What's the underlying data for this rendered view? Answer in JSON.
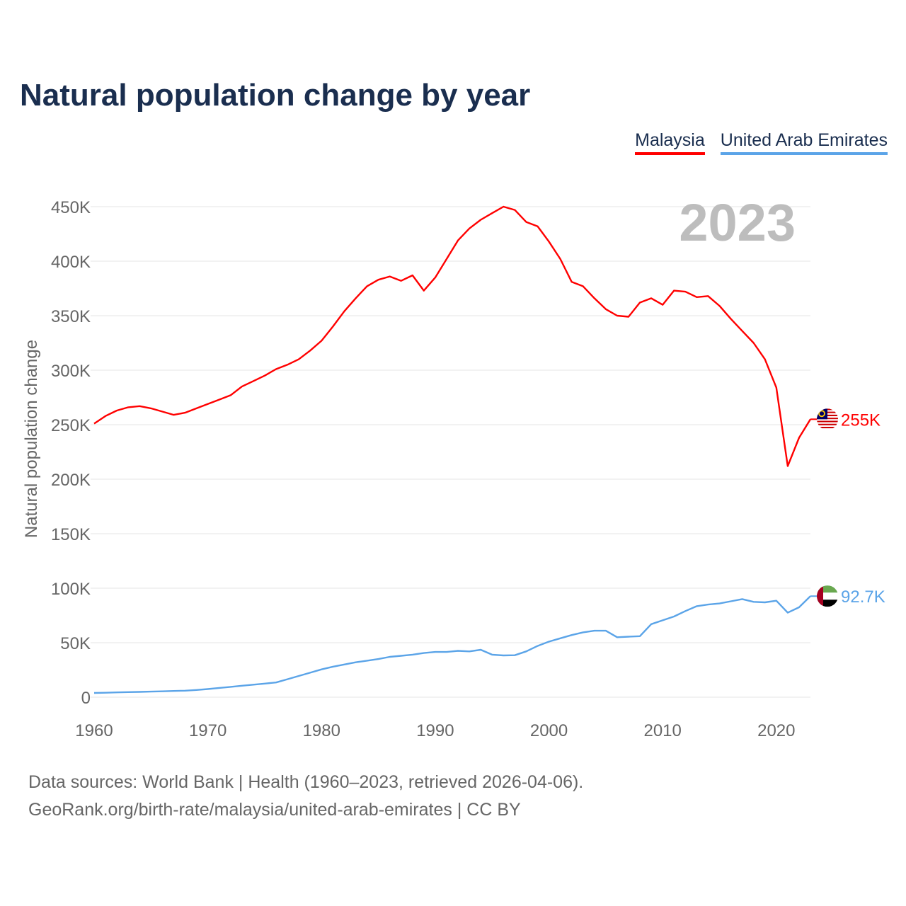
{
  "chart_data": {
    "type": "line",
    "title": "Natural population change by year",
    "ylabel": "Natural population change",
    "xlabel": "",
    "year_label": "2023",
    "xlim": [
      1960,
      2023
    ],
    "ylim": [
      0,
      450000
    ],
    "x_ticks": [
      1960,
      1970,
      1980,
      1990,
      2000,
      2010,
      2020
    ],
    "y_ticks": [
      0,
      50000,
      100000,
      150000,
      200000,
      250000,
      300000,
      350000,
      400000,
      450000
    ],
    "y_tick_labels": [
      "0",
      "50K",
      "100K",
      "150K",
      "200K",
      "250K",
      "300K",
      "350K",
      "400K",
      "450K"
    ],
    "grid": true,
    "legend_placement": "top-right",
    "x": [
      1960,
      1961,
      1962,
      1963,
      1964,
      1965,
      1966,
      1967,
      1968,
      1969,
      1970,
      1971,
      1972,
      1973,
      1974,
      1975,
      1976,
      1977,
      1978,
      1979,
      1980,
      1981,
      1982,
      1983,
      1984,
      1985,
      1986,
      1987,
      1988,
      1989,
      1990,
      1991,
      1992,
      1993,
      1994,
      1995,
      1996,
      1997,
      1998,
      1999,
      2000,
      2001,
      2002,
      2003,
      2004,
      2005,
      2006,
      2007,
      2008,
      2009,
      2010,
      2011,
      2012,
      2013,
      2014,
      2015,
      2016,
      2017,
      2018,
      2019,
      2020,
      2021,
      2022,
      2023
    ],
    "series": [
      {
        "name": "Malaysia",
        "color": "#ff0000",
        "end_label": "255K",
        "values": [
          251000,
          258000,
          263000,
          266000,
          267000,
          265000,
          262000,
          259000,
          261000,
          265000,
          269000,
          273000,
          277000,
          285000,
          290000,
          295000,
          301000,
          305000,
          310000,
          318000,
          327000,
          340000,
          354000,
          366000,
          377000,
          383000,
          386000,
          382000,
          387000,
          373000,
          385000,
          402000,
          419000,
          430000,
          438000,
          444000,
          450000,
          447000,
          436000,
          432000,
          418000,
          402000,
          381000,
          377000,
          366000,
          356000,
          350000,
          349000,
          362000,
          366000,
          360000,
          373000,
          372000,
          367000,
          368000,
          359000,
          347000,
          336000,
          325000,
          310000,
          284000,
          212000,
          238000,
          255000
        ]
      },
      {
        "name": "United Arab Emirates",
        "color": "#5ba4e8",
        "end_label": "92.7K",
        "values": [
          3900,
          4100,
          4400,
          4700,
          4900,
          5100,
          5400,
          5700,
          6000,
          6600,
          7500,
          8500,
          9500,
          10500,
          11500,
          12500,
          13500,
          16500,
          19500,
          22500,
          25500,
          28000,
          30000,
          32000,
          33500,
          35000,
          37000,
          38000,
          39000,
          40500,
          41500,
          41500,
          42500,
          42000,
          43500,
          39000,
          38300,
          38500,
          42000,
          47000,
          51000,
          54000,
          57000,
          59500,
          61000,
          61000,
          55000,
          55500,
          56000,
          67000,
          70500,
          74000,
          79000,
          83500,
          85000,
          86000,
          88000,
          90000,
          87500,
          87000,
          88500,
          77500,
          82500,
          92700
        ]
      }
    ]
  },
  "footer": {
    "line1": "Data sources: World Bank | Health (1960–2023, retrieved 2026-04-06).",
    "line2": "GeoRank.org/birth-rate/malaysia/united-arab-emirates | CC BY"
  }
}
